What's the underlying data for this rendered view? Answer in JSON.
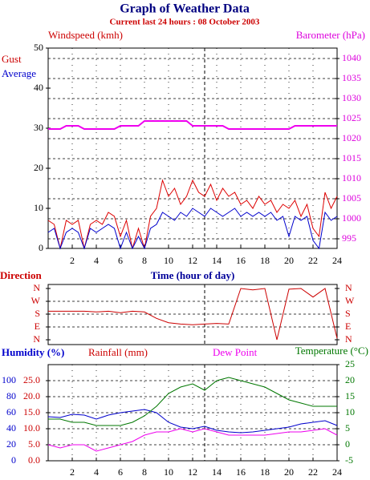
{
  "chart_data": [
    {
      "type": "line",
      "title": "Graph of Weather Data",
      "subtitle": "Current last 24 hours : 08 October 2003",
      "ylabel": "Windspeed (kmh)",
      "y2label": "Barometer (hPa)",
      "xlabel": "Time (hour of day)",
      "x": [
        0,
        0.5,
        1,
        1.5,
        2,
        2.5,
        3,
        3.5,
        4,
        4.5,
        5,
        5.5,
        6,
        6.5,
        7,
        7.5,
        8,
        8.5,
        9,
        9.5,
        10,
        10.5,
        11,
        11.5,
        12,
        12.5,
        13,
        13.5,
        14,
        14.5,
        15,
        15.5,
        16,
        16.5,
        17,
        17.5,
        18,
        18.5,
        19,
        19.5,
        20,
        20.5,
        21,
        21.5,
        22,
        22.5,
        23,
        23.5,
        24
      ],
      "xlim": [
        0,
        24
      ],
      "xticks": [
        2,
        4,
        6,
        8,
        10,
        12,
        14,
        16,
        18,
        20,
        22,
        24
      ],
      "vline": 13,
      "ylim": [
        0,
        50
      ],
      "yticks": [
        0,
        10,
        20,
        30,
        40,
        50
      ],
      "y2lim": [
        992.6,
        1042.6
      ],
      "y2ticks": [
        995,
        1000,
        1005,
        1010,
        1015,
        1020,
        1025,
        1030,
        1035,
        1040
      ],
      "grid": true,
      "series": [
        {
          "name": "Gust",
          "color": "#dd0000",
          "values": [
            7,
            6,
            0,
            7,
            6,
            7,
            0,
            6,
            7,
            6,
            9,
            8,
            3,
            7,
            0,
            5,
            0,
            8,
            10,
            17,
            13,
            15,
            11,
            13,
            17,
            14,
            13,
            16,
            12,
            15,
            13,
            14,
            11,
            12,
            10,
            13,
            11,
            12,
            9,
            11,
            10,
            12,
            8,
            11,
            5,
            3,
            14,
            10,
            13
          ]
        },
        {
          "name": "Average",
          "color": "#0000cc",
          "values": [
            4,
            5,
            0,
            4,
            5,
            4,
            0,
            5,
            4,
            5,
            6,
            5,
            0,
            4,
            0,
            3,
            0,
            5,
            6,
            9,
            8,
            7,
            9,
            8,
            10,
            9,
            8,
            10,
            9,
            8,
            9,
            10,
            8,
            9,
            8,
            9,
            8,
            9,
            7,
            8,
            3,
            8,
            7,
            8,
            2,
            0,
            9,
            7,
            8
          ]
        },
        {
          "name": "Barometer",
          "color": "#ee00ee",
          "axis": "y2",
          "width": 2,
          "values": [
            1022.4,
            1022.4,
            1022.4,
            1023.2,
            1023.2,
            1023.2,
            1022.4,
            1022.4,
            1022.4,
            1022.4,
            1022.4,
            1022.4,
            1023.2,
            1023.2,
            1023.2,
            1023.2,
            1024.4,
            1024.4,
            1024.4,
            1024.4,
            1024.4,
            1024.4,
            1024.4,
            1024.4,
            1023.2,
            1023.2,
            1023.2,
            1023.2,
            1023.2,
            1023.2,
            1022.4,
            1022.4,
            1022.4,
            1022.4,
            1022.4,
            1022.4,
            1022.4,
            1022.4,
            1022.4,
            1022.4,
            1022.4,
            1023.2,
            1023.2,
            1023.2,
            1023.2,
            1023.2,
            1023.2,
            1023.2,
            1023.2
          ]
        }
      ]
    },
    {
      "type": "line",
      "ylabel": "Direction",
      "x": [
        0,
        1,
        2,
        3,
        4,
        5,
        6,
        7,
        8,
        9,
        10,
        11,
        12,
        13,
        14,
        15,
        16,
        17,
        18,
        19,
        20,
        21,
        22,
        23,
        24
      ],
      "xlim": [
        0,
        24
      ],
      "vline": 13,
      "ylim": [
        0,
        360
      ],
      "yticks": [
        {
          "value": 0,
          "label": "N"
        },
        {
          "value": 90,
          "label": "E"
        },
        {
          "value": 180,
          "label": "S"
        },
        {
          "value": 270,
          "label": "W"
        },
        {
          "value": 360,
          "label": "N"
        }
      ],
      "grid": true,
      "series": [
        {
          "color": "#cc0000",
          "values": [
            200,
            200,
            200,
            200,
            195,
            200,
            190,
            200,
            195,
            150,
            120,
            110,
            105,
            110,
            115,
            110,
            360,
            350,
            360,
            0,
            355,
            360,
            300,
            360,
            10
          ]
        }
      ]
    },
    {
      "type": "line",
      "y3label": "Rainfall (mm)",
      "x": [
        0,
        1,
        2,
        3,
        4,
        5,
        6,
        7,
        8,
        9,
        10,
        11,
        12,
        13,
        14,
        15,
        16,
        17,
        18,
        19,
        20,
        21,
        22,
        23,
        24
      ],
      "xlim": [
        0,
        24
      ],
      "xticks": [
        2,
        4,
        6,
        8,
        10,
        12,
        14,
        16,
        18,
        20,
        22,
        24
      ],
      "vline": 13,
      "ylim": [
        0,
        120
      ],
      "yticks": [
        0,
        20,
        40,
        60,
        80,
        100
      ],
      "y3lim": [
        0,
        30
      ],
      "y3ticks": [
        {
          "value": 0,
          "label": "0.0"
        },
        {
          "value": 5,
          "label": "5.0"
        },
        {
          "value": 10,
          "label": "10.0"
        },
        {
          "value": 15,
          "label": "15.0"
        },
        {
          "value": 20,
          "label": "20.0"
        },
        {
          "value": 25,
          "label": "25.0"
        }
      ],
      "y2lim": [
        -5,
        25
      ],
      "y2ticks": [
        -5,
        0,
        5,
        10,
        15,
        20,
        25
      ],
      "grid": true,
      "series": [
        {
          "name": "Humidity (%)",
          "color": "#0000cc",
          "values": [
            55,
            54,
            58,
            57,
            52,
            57,
            60,
            62,
            64,
            60,
            48,
            42,
            40,
            43,
            38,
            36,
            35,
            36,
            38,
            40,
            42,
            46,
            48,
            50,
            44
          ]
        },
        {
          "name": "Dew Point",
          "color": "#ee00ee",
          "axis": "y2",
          "values": [
            0,
            -1,
            0,
            0,
            -2,
            -1,
            0,
            1,
            3,
            4,
            4,
            5,
            4,
            5,
            4,
            3,
            3,
            3,
            3,
            3.5,
            4,
            4,
            4.5,
            5,
            3
          ]
        },
        {
          "name": "Temperature (°C)",
          "color": "#007700",
          "axis": "y2",
          "values": [
            8,
            8,
            7,
            7,
            6,
            6,
            6,
            7,
            9,
            12,
            16,
            18,
            19,
            17,
            20,
            21,
            20,
            19,
            18,
            16,
            14,
            13,
            12,
            12,
            12
          ]
        }
      ]
    }
  ]
}
